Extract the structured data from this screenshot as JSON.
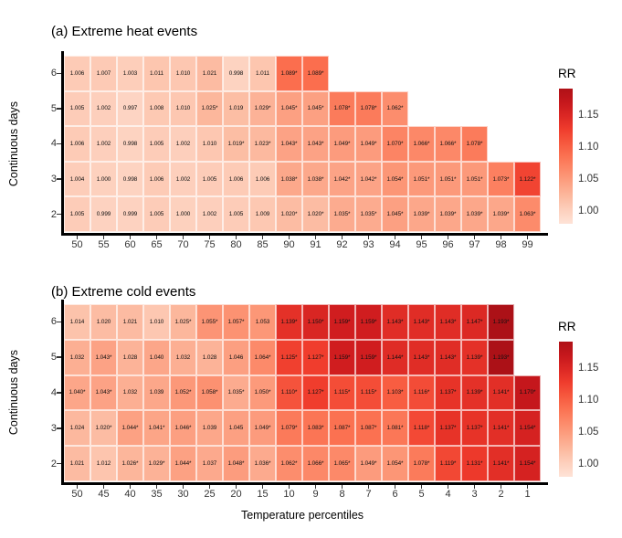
{
  "chart_data": [
    {
      "type": "heatmap",
      "title": "(a) Extreme heat events",
      "xlabel": "",
      "ylabel": "Continuous days",
      "legend_title": "RR",
      "legend_ticks": [
        "1.15",
        "1.10",
        "1.05",
        "1.00"
      ],
      "x_categories": [
        "50",
        "55",
        "60",
        "65",
        "70",
        "75",
        "80",
        "85",
        "90",
        "91",
        "92",
        "93",
        "94",
        "95",
        "96",
        "97",
        "98",
        "99"
      ],
      "y_categories": [
        "6",
        "5",
        "4",
        "3",
        "2"
      ],
      "cells": [
        [
          "1.006",
          "1.007",
          "1.003",
          "1.011",
          "1.010",
          "1.021",
          "0.998",
          "1.011",
          "1.089*",
          "1.089*",
          null,
          null,
          null,
          null,
          null,
          null,
          null,
          null
        ],
        [
          "1.005",
          "1.002",
          "0.997",
          "1.008",
          "1.010",
          "1.025*",
          "1.019",
          "1.029*",
          "1.045*",
          "1.045*",
          "1.078*",
          "1.078*",
          "1.062*",
          null,
          null,
          null,
          null,
          null
        ],
        [
          "1.006",
          "1.002",
          "0.998",
          "1.005",
          "1.002",
          "1.010",
          "1.019*",
          "1.023*",
          "1.043*",
          "1.043*",
          "1.049*",
          "1.049*",
          "1.070*",
          "1.066*",
          "1.066*",
          "1.078*",
          null,
          null
        ],
        [
          "1.004",
          "1.000",
          "0.998",
          "1.006",
          "1.002",
          "1.005",
          "1.006",
          "1.006",
          "1.038*",
          "1.038*",
          "1.042*",
          "1.042*",
          "1.054*",
          "1.051*",
          "1.051*",
          "1.051*",
          "1.073*",
          "1.122*"
        ],
        [
          "1.005",
          "0.999",
          "0.999",
          "1.005",
          "1.000",
          "1.002",
          "1.005",
          "1.009",
          "1.020*",
          "1.020*",
          "1.035*",
          "1.035*",
          "1.045*",
          "1.039*",
          "1.039*",
          "1.039*",
          "1.039*",
          "1.063*"
        ]
      ]
    },
    {
      "type": "heatmap",
      "title": "(b) Extreme cold events",
      "xlabel": "Temperature percentiles",
      "ylabel": "Continuous days",
      "legend_title": "RR",
      "legend_ticks": [
        "1.15",
        "1.10",
        "1.05",
        "1.00"
      ],
      "x_categories": [
        "50",
        "45",
        "40",
        "35",
        "30",
        "25",
        "20",
        "15",
        "10",
        "9",
        "8",
        "7",
        "6",
        "5",
        "4",
        "3",
        "2",
        "1"
      ],
      "y_categories": [
        "6",
        "5",
        "4",
        "3",
        "2"
      ],
      "cells": [
        [
          "1.014",
          "1.020",
          "1.021",
          "1.010",
          "1.025*",
          "1.055*",
          "1.057*",
          "1.053",
          "1.139*",
          "1.150*",
          "1.159*",
          "1.159*",
          "1.143*",
          "1.143*",
          "1.143*",
          "1.147*",
          "1.193*",
          null
        ],
        [
          "1.032",
          "1.043*",
          "1.028",
          "1.040",
          "1.032",
          "1.028",
          "1.046",
          "1.064*",
          "1.125*",
          "1.127*",
          "1.159*",
          "1.159*",
          "1.144*",
          "1.143*",
          "1.143*",
          "1.139*",
          "1.193*",
          null
        ],
        [
          "1.040*",
          "1.043*",
          "1.032",
          "1.039",
          "1.052*",
          "1.058*",
          "1.035*",
          "1.050*",
          "1.110*",
          "1.127*",
          "1.115*",
          "1.115*",
          "1.103*",
          "1.116*",
          "1.137*",
          "1.139*",
          "1.141*",
          "1.170*"
        ],
        [
          "1.024",
          "1.020*",
          "1.044*",
          "1.041*",
          "1.046*",
          "1.039",
          "1.045",
          "1.049*",
          "1.079*",
          "1.083*",
          "1.087*",
          "1.087*",
          "1.081*",
          "1.118*",
          "1.137*",
          "1.137*",
          "1.141*",
          "1.154*"
        ],
        [
          "1.021",
          "1.012",
          "1.026*",
          "1.029*",
          "1.044*",
          "1.037",
          "1.048*",
          "1.036*",
          "1.062*",
          "1.066*",
          "1.065*",
          "1.049*",
          "1.054*",
          "1.078*",
          "1.119*",
          "1.131*",
          "1.141*",
          "1.154*"
        ]
      ]
    }
  ],
  "colors": {
    "palette_reds": [
      "#fff5f0",
      "#fee0d2",
      "#fcbba1",
      "#fc9272",
      "#fb6a4a",
      "#ef3b2c",
      "#cb181d",
      "#a50f15"
    ],
    "cell_value_domain": [
      0.95,
      1.2
    ],
    "colorbar_value_range": [
      0.98,
      1.191
    ],
    "background": "#ffffff",
    "axis_line": "#000000",
    "tick_label": "#404040",
    "cell_text": "#111111"
  }
}
